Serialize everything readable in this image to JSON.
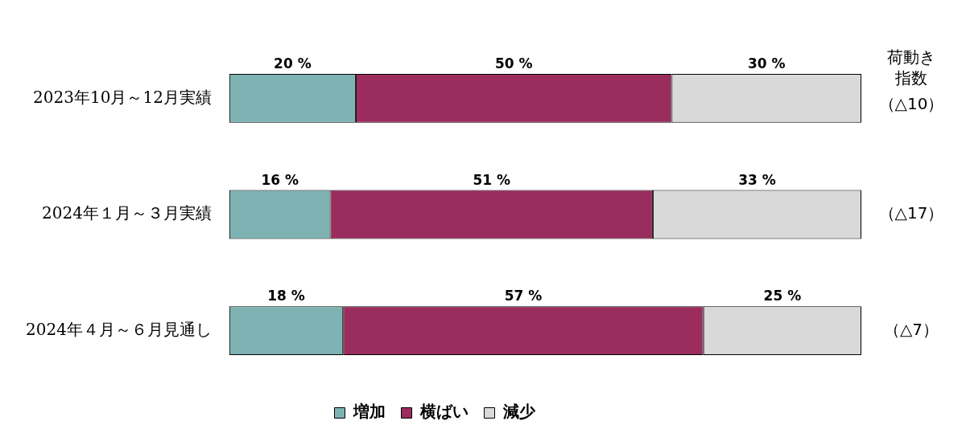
{
  "chart_data": {
    "type": "bar",
    "orientation": "horizontal",
    "stacked": true,
    "categories": [
      "2023年10月～12月実績",
      "2024年１月～３月実績",
      "2024年４月～６月見通し"
    ],
    "series": [
      {
        "name": "増加",
        "color": "#7fb3b3",
        "values": [
          20,
          16,
          18
        ],
        "value_labels": [
          "20 %",
          "16 %",
          "18 %"
        ]
      },
      {
        "name": "横ばい",
        "color": "#9b2d5e",
        "values": [
          50,
          51,
          57
        ],
        "value_labels": [
          "50 %",
          "51 %",
          "57 %"
        ]
      },
      {
        "name": "減少",
        "color": "#d9d9d9",
        "values": [
          30,
          33,
          25
        ],
        "value_labels": [
          "30 %",
          "33 %",
          "25 %"
        ]
      }
    ],
    "tick_labels": "y",
    "grid": false,
    "legend": "bottom",
    "annotations": [
      "荷動き",
      "指数",
      "（△10）",
      "（△17）",
      "（△7）"
    ]
  }
}
